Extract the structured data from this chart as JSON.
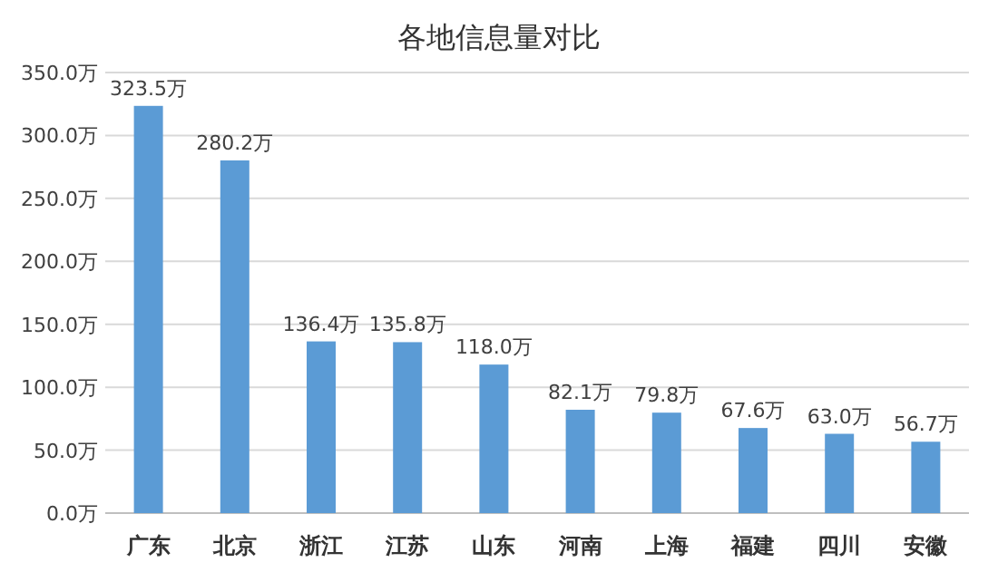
{
  "chart_data": {
    "type": "bar",
    "title": "各地信息量对比",
    "categories": [
      "广东",
      "北京",
      "浙江",
      "江苏",
      "山东",
      "河南",
      "上海",
      "福建",
      "四川",
      "安徽"
    ],
    "values": [
      323.5,
      280.2,
      136.4,
      135.8,
      118.0,
      82.1,
      79.8,
      67.6,
      63.0,
      56.7
    ],
    "value_labels": [
      "323.5万",
      "280.2万",
      "136.4万",
      "135.8万",
      "118.0万",
      "82.1万",
      "79.8万",
      "67.6万",
      "63.0万",
      "56.7万"
    ],
    "color": "#5b9bd5",
    "ylim": [
      0,
      350
    ],
    "yticks": [
      {
        "value": 0,
        "label": "0.0万"
      },
      {
        "value": 50,
        "label": "50.0万"
      },
      {
        "value": 100,
        "label": "100.0万"
      },
      {
        "value": 150,
        "label": "150.0万"
      },
      {
        "value": 200,
        "label": "200.0万"
      },
      {
        "value": 250,
        "label": "250.0万"
      },
      {
        "value": 300,
        "label": "300.0万"
      },
      {
        "value": 350,
        "label": "350.0万"
      }
    ],
    "grid": "y"
  }
}
